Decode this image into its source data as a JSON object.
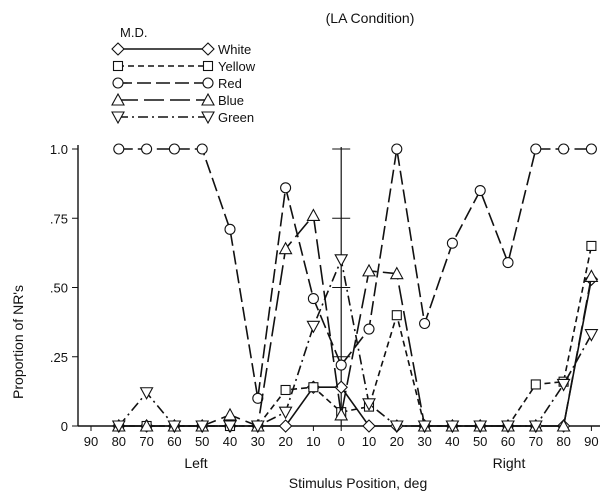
{
  "chart_data": {
    "type": "line",
    "title": "(LA Condition)",
    "subject": "M.D.",
    "xlabel": "Stimulus Position, deg",
    "ylabel": "Proportion of NR's",
    "side_labels": {
      "left": "Left",
      "right": "Right"
    },
    "x_ticks": [
      "90",
      "80",
      "70",
      "60",
      "50",
      "40",
      "30",
      "20",
      "10",
      "0",
      "10",
      "20",
      "30",
      "40",
      "50",
      "60",
      "70",
      "80",
      "90"
    ],
    "y_ticks": [
      "0",
      ".25",
      ".50",
      ".75",
      "1.0"
    ],
    "ylim": [
      0,
      1.0
    ],
    "x": [
      -90,
      -80,
      -70,
      -60,
      -50,
      -40,
      -30,
      -20,
      -10,
      0,
      10,
      20,
      30,
      40,
      50,
      60,
      70,
      80,
      90
    ],
    "series": [
      {
        "name": "White",
        "marker": "diamond",
        "values": [
          null,
          0,
          0,
          0,
          0,
          0,
          0,
          0,
          0.14,
          0.14,
          0,
          0,
          0,
          0,
          0,
          0,
          0,
          0,
          0.53
        ]
      },
      {
        "name": "Yellow",
        "marker": "square",
        "values": [
          null,
          0,
          0,
          0,
          0,
          0,
          0,
          0.13,
          0.14,
          0.05,
          0.07,
          0.4,
          0,
          0,
          0,
          0,
          0.15,
          0.16,
          0.65
        ]
      },
      {
        "name": "Red",
        "marker": "circle",
        "values": [
          null,
          1.0,
          1.0,
          1.0,
          1.0,
          0.71,
          0.1,
          0.86,
          0.46,
          0.22,
          0.35,
          1.0,
          0.37,
          0.66,
          0.85,
          0.59,
          1.0,
          1.0,
          1.0
        ]
      },
      {
        "name": "Blue",
        "marker": "triangle-up",
        "values": [
          null,
          0,
          0,
          0,
          0,
          0.04,
          0,
          0.64,
          0.76,
          0.04,
          0.56,
          0.55,
          0,
          0,
          0,
          0,
          0,
          0,
          0.54
        ]
      },
      {
        "name": "Green",
        "marker": "triangle-down",
        "values": [
          null,
          0,
          0.12,
          0,
          0,
          0,
          0,
          0.05,
          0.36,
          0.6,
          0.08,
          0,
          0,
          0,
          0,
          0,
          0,
          0.15,
          0.33
        ]
      }
    ]
  }
}
